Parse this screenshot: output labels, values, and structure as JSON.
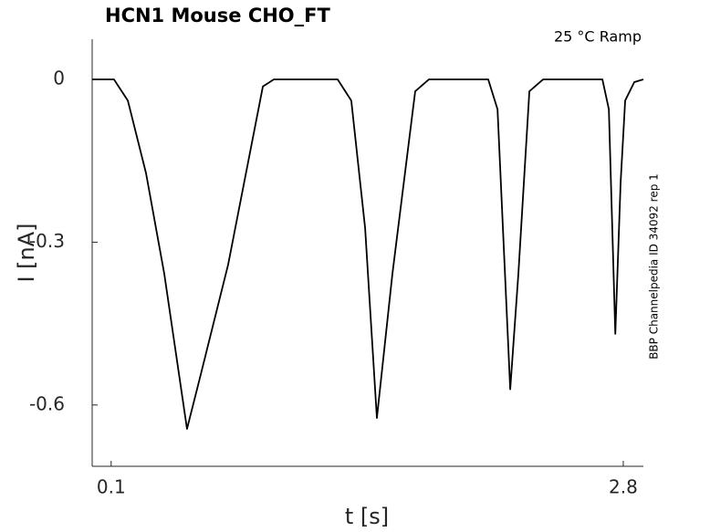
{
  "chart_data": {
    "type": "line",
    "title": "HCN1  Mouse  CHO_FT",
    "annotation": "25 °C  Ramp",
    "side_note": "BBP Channelpedia ID 34092 rep 1",
    "xlabel": "t [s]",
    "ylabel": "I [nA]",
    "xlim": [
      0,
      2.906
    ],
    "ylim": [
      -0.713,
      0.074
    ],
    "xticks": [
      0.1,
      2.8
    ],
    "yticks": [
      0,
      -0.3,
      -0.6
    ],
    "color": "#000000",
    "x": [
      0,
      0.115,
      0.188,
      0.284,
      0.38,
      0.5,
      0.573,
      0.717,
      0.9,
      0.958,
      1.294,
      1.366,
      1.439,
      1.501,
      1.583,
      1.703,
      1.775,
      2.088,
      2.137,
      2.204,
      2.247,
      2.305,
      2.377,
      2.69,
      2.724,
      2.758,
      2.786,
      2.81,
      2.858,
      2.906
    ],
    "values": [
      0,
      0,
      -0.039,
      -0.173,
      -0.358,
      -0.644,
      -0.543,
      -0.341,
      -0.013,
      0,
      0,
      -0.039,
      -0.274,
      -0.624,
      -0.358,
      -0.022,
      0,
      0,
      -0.055,
      -0.571,
      -0.358,
      -0.022,
      0,
      0,
      -0.055,
      -0.469,
      -0.19,
      -0.039,
      -0.005,
      0
    ]
  }
}
